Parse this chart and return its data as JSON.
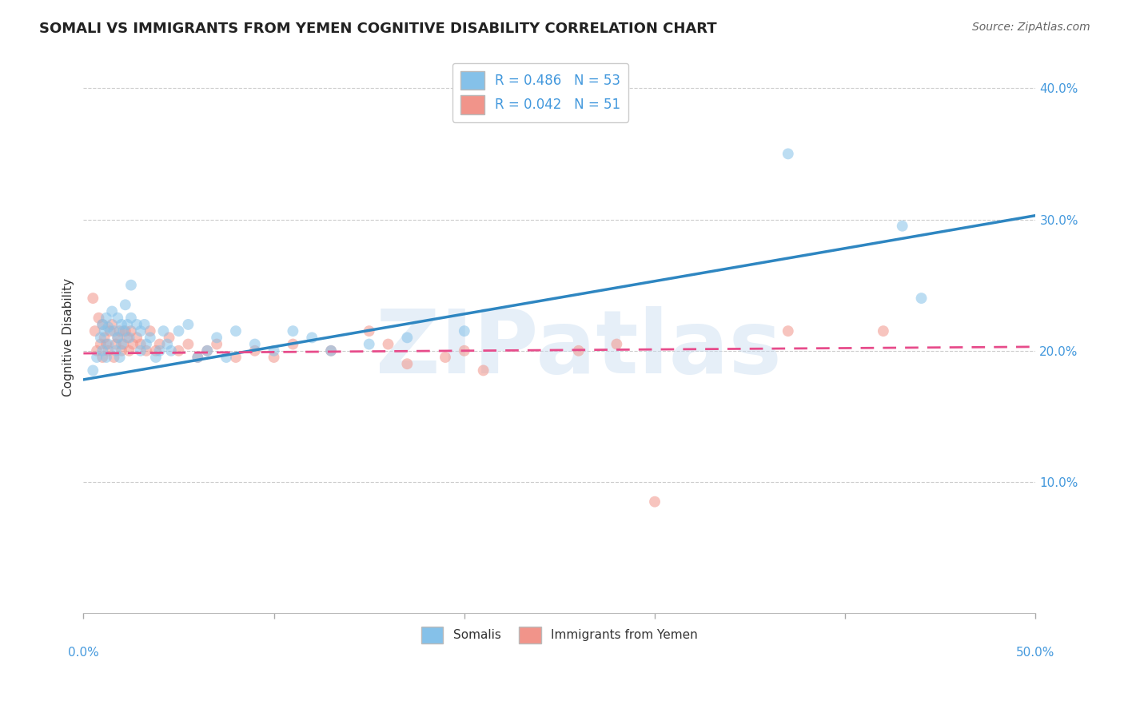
{
  "title": "SOMALI VS IMMIGRANTS FROM YEMEN COGNITIVE DISABILITY CORRELATION CHART",
  "source": "Source: ZipAtlas.com",
  "ylabel": "Cognitive Disability",
  "watermark": "ZIPatlas",
  "legend1_label": "R = 0.486   N = 53",
  "legend2_label": "R = 0.042   N = 51",
  "legend_somali": "Somalis",
  "legend_yemen": "Immigrants from Yemen",
  "somali_color": "#85C1E9",
  "yemen_color": "#F1948A",
  "somali_line_color": "#2E86C1",
  "yemen_line_color": "#E74C8B",
  "xlim": [
    0.0,
    0.5
  ],
  "ylim": [
    0.0,
    0.42
  ],
  "yticks": [
    0.1,
    0.2,
    0.3,
    0.4
  ],
  "ytick_labels": [
    "10.0%",
    "20.0%",
    "30.0%",
    "40.0%"
  ],
  "xticks": [
    0.0,
    0.1,
    0.2,
    0.3,
    0.4,
    0.5
  ],
  "somali_line_x": [
    0.0,
    0.5
  ],
  "somali_line_y": [
    0.178,
    0.303
  ],
  "yemen_line_x": [
    0.0,
    0.5
  ],
  "yemen_line_y": [
    0.198,
    0.203
  ],
  "somali_x": [
    0.005,
    0.007,
    0.009,
    0.01,
    0.01,
    0.011,
    0.012,
    0.012,
    0.013,
    0.013,
    0.015,
    0.016,
    0.017,
    0.018,
    0.018,
    0.019,
    0.02,
    0.02,
    0.021,
    0.022,
    0.023,
    0.024,
    0.025,
    0.025,
    0.028,
    0.03,
    0.03,
    0.032,
    0.033,
    0.035,
    0.038,
    0.04,
    0.042,
    0.044,
    0.046,
    0.05,
    0.055,
    0.06,
    0.065,
    0.07,
    0.075,
    0.08,
    0.09,
    0.1,
    0.11,
    0.12,
    0.13,
    0.15,
    0.17,
    0.2,
    0.37,
    0.43,
    0.44
  ],
  "somali_y": [
    0.185,
    0.195,
    0.21,
    0.22,
    0.2,
    0.215,
    0.225,
    0.195,
    0.205,
    0.218,
    0.23,
    0.215,
    0.2,
    0.225,
    0.21,
    0.195,
    0.22,
    0.205,
    0.215,
    0.235,
    0.22,
    0.21,
    0.25,
    0.225,
    0.22,
    0.215,
    0.2,
    0.22,
    0.205,
    0.21,
    0.195,
    0.2,
    0.215,
    0.205,
    0.2,
    0.215,
    0.22,
    0.195,
    0.2,
    0.21,
    0.195,
    0.215,
    0.205,
    0.2,
    0.215,
    0.21,
    0.2,
    0.205,
    0.21,
    0.215,
    0.35,
    0.295,
    0.24
  ],
  "yemen_x": [
    0.005,
    0.006,
    0.007,
    0.008,
    0.009,
    0.01,
    0.01,
    0.011,
    0.012,
    0.013,
    0.014,
    0.015,
    0.016,
    0.017,
    0.018,
    0.019,
    0.02,
    0.021,
    0.022,
    0.023,
    0.024,
    0.025,
    0.026,
    0.028,
    0.03,
    0.033,
    0.035,
    0.038,
    0.04,
    0.045,
    0.05,
    0.055,
    0.06,
    0.065,
    0.07,
    0.08,
    0.09,
    0.1,
    0.11,
    0.13,
    0.15,
    0.16,
    0.17,
    0.19,
    0.2,
    0.21,
    0.26,
    0.28,
    0.3,
    0.37,
    0.42
  ],
  "yemen_y": [
    0.24,
    0.215,
    0.2,
    0.225,
    0.205,
    0.22,
    0.195,
    0.21,
    0.205,
    0.2,
    0.215,
    0.22,
    0.195,
    0.205,
    0.21,
    0.215,
    0.2,
    0.205,
    0.215,
    0.21,
    0.2,
    0.215,
    0.205,
    0.21,
    0.205,
    0.2,
    0.215,
    0.2,
    0.205,
    0.21,
    0.2,
    0.205,
    0.195,
    0.2,
    0.205,
    0.195,
    0.2,
    0.195,
    0.205,
    0.2,
    0.215,
    0.205,
    0.19,
    0.195,
    0.2,
    0.185,
    0.2,
    0.205,
    0.085,
    0.215,
    0.215
  ],
  "title_fontsize": 13,
  "axis_label_fontsize": 11,
  "tick_fontsize": 11,
  "source_fontsize": 10,
  "background_color": "#FFFFFF",
  "grid_color": "#CCCCCC",
  "marker_size": 100,
  "marker_alpha": 0.55,
  "tick_color": "#4499DD"
}
